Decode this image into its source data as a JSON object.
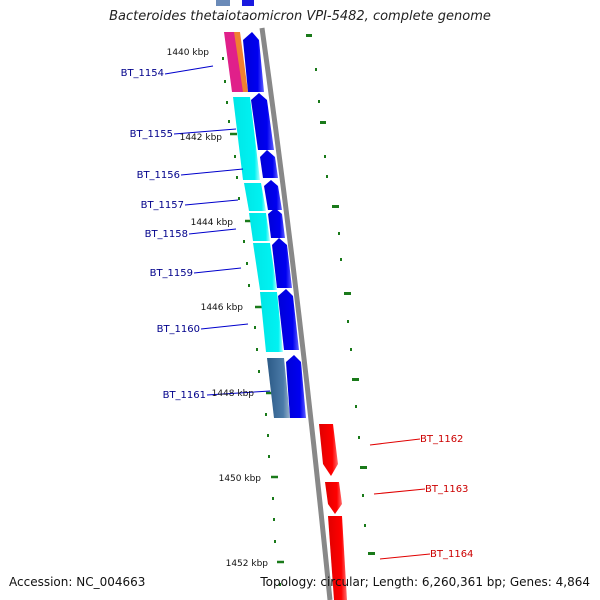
{
  "title": "Bacteroides thetaiotaomicron VPI-5482, complete genome",
  "footer": {
    "accession": "Accession: NC_004663",
    "summary": "Topology: circular; Length: 6,260,361 bp; Genes: 4,864"
  },
  "ruler_labels": [
    "1440 kbp",
    "1442 kbp",
    "1444 kbp",
    "1446 kbp",
    "1448 kbp",
    "1450 kbp",
    "1452 kbp"
  ],
  "genes_reverse": [
    "BT_1154",
    "BT_1155",
    "BT_1156",
    "BT_1157",
    "BT_1158",
    "BT_1159",
    "BT_1160",
    "BT_1161"
  ],
  "genes_forward": [
    "BT_1162",
    "BT_1163",
    "BT_1164"
  ],
  "colors": {
    "reverse_strand": "#0000ee",
    "forward_strand": "#ff0000",
    "reverse_label": "#00008b",
    "forward_label": "#cc0000",
    "cog_cyan": "#00eeee",
    "cog_steel": "#3a6a9a",
    "cog_orange": "#f08030",
    "cog_magenta": "#e0208a",
    "backbone": "#808080",
    "tick": "#1a7a1a"
  }
}
